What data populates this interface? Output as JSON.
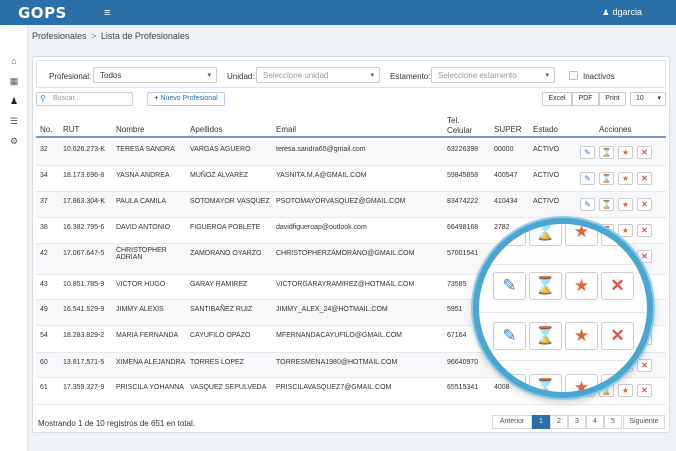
{
  "app": {
    "logo": "GOPS",
    "user": "dgarcia"
  },
  "nav": {
    "menu_icon": "≡",
    "icons": [
      "home-icon",
      "calendar-icon",
      "user-icon",
      "list-icon",
      "gear-icon"
    ]
  },
  "breadcrumb": {
    "parent": "Profesionales",
    "separator": ">",
    "current": "Lista de Profesionales"
  },
  "filters": {
    "profesional_label": "Profesional:",
    "profesional_value": "Todos",
    "unidad_label": "Unidad:",
    "unidad_placeholder": "Seleccione unidad",
    "estamento_label": "Estamento:",
    "estamento_placeholder": "Seleccione estamento",
    "inactivos_label": "Inactivos"
  },
  "toolbar": {
    "search_placeholder": "Buscar...",
    "new_button": "Nuevo Profesional",
    "excel": "Excel",
    "pdf": "PDF",
    "print": "Print",
    "page_size": "10"
  },
  "table": {
    "headers": {
      "no": "No.",
      "rut": "RUT",
      "nombre": "Nombre",
      "apellidos": "Apellidos",
      "email": "Email",
      "tel1": "Tel.",
      "tel2": "Celular",
      "super": "SUPER",
      "estado": "Estado",
      "acciones": "Acciones"
    },
    "rows": [
      {
        "no": "32",
        "rut": "10.626.273-K",
        "nombre": "TERESA SANDRA",
        "apellidos": "VARGAS AGUERO",
        "email": "teresa.sandra65@gmail.com",
        "tel": "63226398",
        "super": "00000",
        "estado": "ACTIVO"
      },
      {
        "no": "34",
        "rut": "18.173.696-8",
        "nombre": "YASNA ANDREA",
        "apellidos": "MUÑOZ ALVAREZ",
        "email": "YASNITA.M.A@GMAIL.COM",
        "tel": "59845858",
        "super": "400547",
        "estado": "ACTIVO"
      },
      {
        "no": "37",
        "rut": "17.863.304-K",
        "nombre": "PAULA CAMILA",
        "apellidos": "SOTOMAYOR VASQUEZ",
        "email": "PSOTOMAYORVASQUEZ@GMAIL.COM",
        "tel": "83474222",
        "super": "410434",
        "estado": "ACTIVO"
      },
      {
        "no": "38",
        "rut": "16.382.795-6",
        "nombre": "DAVID ANTONIO",
        "apellidos": "FIGUEROA POBLETE",
        "email": "davidfigueroap@outlook.com",
        "tel": "66498168",
        "super": "2782",
        "estado": ""
      },
      {
        "no": "42",
        "rut": "17.067.647-5",
        "nombre": "CHRISTOPHER ADRIAN",
        "apellidos": "ZAMORANO OYARZO",
        "email": "CHRISTOPHERZAMORANO@GMAIL.COM",
        "tel": "57001541",
        "super": "",
        "estado": ""
      },
      {
        "no": "43",
        "rut": "10.851.785-9",
        "nombre": "VICTOR HUGO",
        "apellidos": "GARAY RAMIREZ",
        "email": "VICTORGARAYRAMIREZ@HOTMAIL.COM",
        "tel": "73585",
        "super": "",
        "estado": ""
      },
      {
        "no": "49",
        "rut": "16.541.529-9",
        "nombre": "JIMMY ALEXIS",
        "apellidos": "SANTIBAÑEZ RUIZ",
        "email": "JIMMY_ALEX_24@HOTMAIL.COM",
        "tel": "5951",
        "super": "",
        "estado": ""
      },
      {
        "no": "54",
        "rut": "18.283.829-2",
        "nombre": "MARIA FERNANDA",
        "apellidos": "CAYUFILO OPAZO",
        "email": "MFERNANDACAYUFILO@GMAIL.COM",
        "tel": "67164",
        "super": "",
        "estado": ""
      },
      {
        "no": "60",
        "rut": "13.817.571-5",
        "nombre": "XIMENA ALEJANDRA",
        "apellidos": "TORRES LOPEZ",
        "email": "TORRESMENA1980@HOTMAIL.COM",
        "tel": "96640970",
        "super": "",
        "estado": ""
      },
      {
        "no": "61",
        "rut": "17.359.327-9",
        "nombre": "PRISCILA YOHANNA",
        "apellidos": "VASQUEZ SEPULVEDA",
        "email": "PRISCILAVASQUEZ7@GMAIL.COM",
        "tel": "65515341",
        "super": "4008",
        "estado": ""
      }
    ]
  },
  "footer": {
    "summary": "Mostrando 1 de 10 registros de 651 en total.",
    "prev": "Anterior",
    "pages": [
      "1",
      "2",
      "3",
      "4",
      "5"
    ],
    "next": "Siguiente",
    "active_page": "1"
  },
  "icons": {
    "edit": "edit-icon",
    "hourglass": "hourglass-icon",
    "star": "star-icon",
    "delete": "delete-icon"
  },
  "colors": {
    "topbar": "#2b6fa8",
    "magnifier_ring": "#4aa6d0",
    "active_page": "#2b6fa8"
  }
}
